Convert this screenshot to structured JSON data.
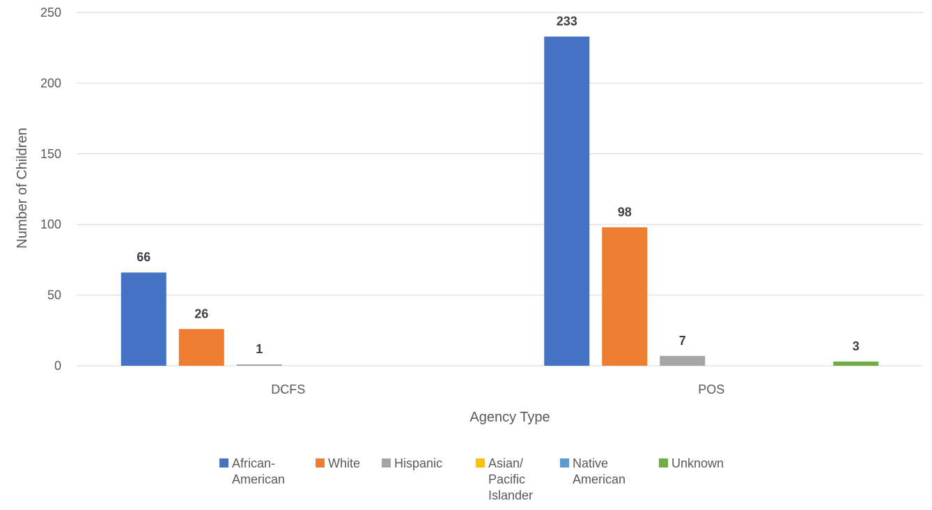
{
  "chart_data": {
    "type": "bar",
    "title": "",
    "xlabel": "Agency Type",
    "ylabel": "Number of Children",
    "categories": [
      "DCFS",
      "POS"
    ],
    "ylim": [
      0,
      250
    ],
    "yticks": [
      0,
      50,
      100,
      150,
      200,
      250
    ],
    "grid": true,
    "legend_position": "bottom",
    "series": [
      {
        "name": "African-American",
        "legend_lines": [
          "African-",
          "American"
        ],
        "color": "#4472C4",
        "values": [
          66,
          233
        ]
      },
      {
        "name": "White",
        "legend_lines": [
          "White"
        ],
        "color": "#ED7D31",
        "values": [
          26,
          98
        ]
      },
      {
        "name": "Hispanic",
        "legend_lines": [
          "Hispanic"
        ],
        "color": "#A5A5A5",
        "values": [
          1,
          7
        ]
      },
      {
        "name": "Asian/ Pacific Islander",
        "legend_lines": [
          "Asian/",
          "Pacific",
          "Islander"
        ],
        "color": "#FFC000",
        "values": [
          0,
          0
        ]
      },
      {
        "name": "Native American",
        "legend_lines": [
          "Native",
          "American"
        ],
        "color": "#5B9BD5",
        "values": [
          0,
          0
        ]
      },
      {
        "name": "Unknown",
        "legend_lines": [
          "Unknown"
        ],
        "color": "#70AD47",
        "values": [
          0,
          3
        ]
      }
    ]
  }
}
